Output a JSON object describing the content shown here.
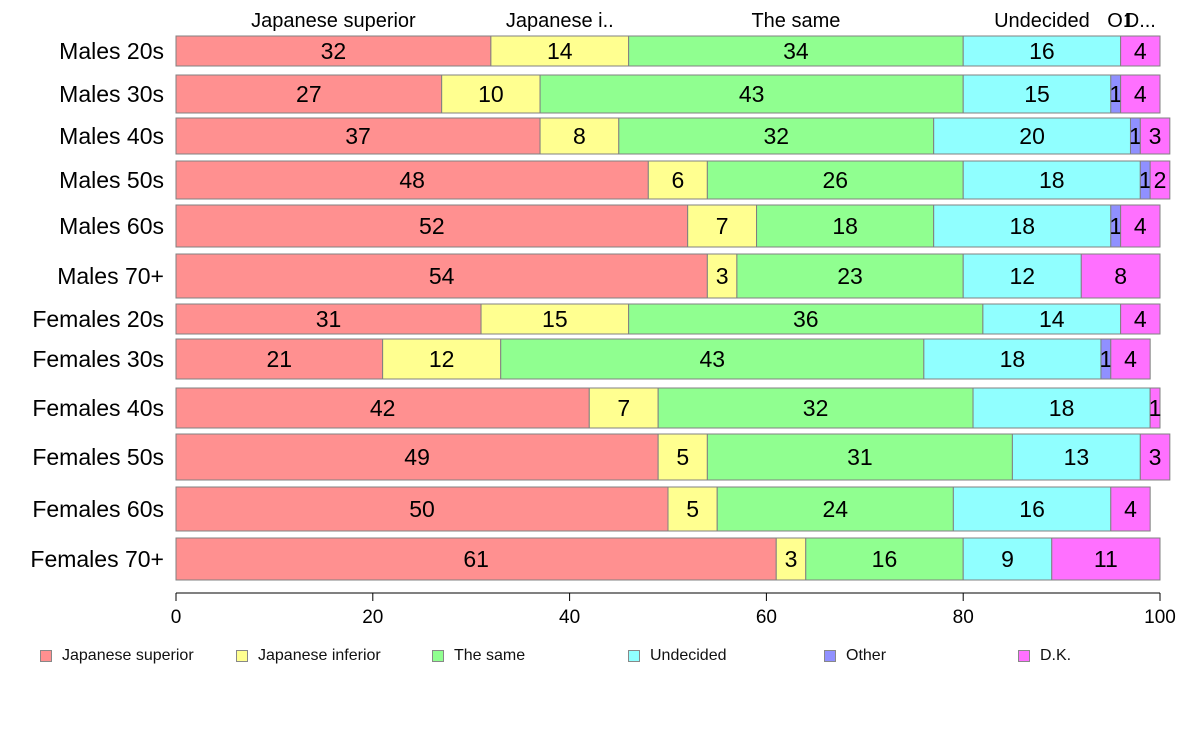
{
  "chart_data": {
    "type": "bar",
    "orientation": "horizontal",
    "stacked": true,
    "title": "",
    "xlabel": "",
    "ylabel": "",
    "xlim": [
      0,
      100
    ],
    "x_ticks": [
      "0",
      "20",
      "40",
      "60",
      "80",
      "100"
    ],
    "grid": false,
    "legend_position": "bottom",
    "categories": [
      "Males 20s",
      "Males 30s",
      "Males 40s",
      "Males 50s",
      "Males 60s",
      "Males 70+",
      "Females 20s",
      "Females 30s",
      "Females 40s",
      "Females 50s",
      "Females 60s",
      "Females 70+"
    ],
    "top_labels": [
      "Japanese superior",
      "Japanese i..",
      "The same",
      "Undecided",
      "O1",
      "D..."
    ],
    "series": [
      {
        "name": "Japanese superior",
        "color": "#ff9090",
        "values": [
          32,
          27,
          37,
          48,
          52,
          54,
          31,
          21,
          42,
          49,
          50,
          61
        ]
      },
      {
        "name": "Japanese inferior",
        "color": "#ffff90",
        "values": [
          14,
          10,
          8,
          6,
          7,
          3,
          15,
          12,
          7,
          5,
          5,
          3
        ]
      },
      {
        "name": "The same",
        "color": "#90ff90",
        "values": [
          34,
          43,
          32,
          26,
          18,
          23,
          36,
          43,
          32,
          31,
          24,
          16
        ]
      },
      {
        "name": "Undecided",
        "color": "#90ffff",
        "values": [
          16,
          15,
          20,
          18,
          18,
          12,
          14,
          18,
          18,
          13,
          16,
          9
        ]
      },
      {
        "name": "Other",
        "color": "#9090ff",
        "values": [
          0,
          1,
          1,
          1,
          1,
          0,
          0,
          1,
          0,
          0,
          0,
          0
        ]
      },
      {
        "name": "D.K.",
        "color": "#ff70ff",
        "values": [
          4,
          4,
          3,
          2,
          4,
          8,
          4,
          4,
          1,
          3,
          4,
          11
        ]
      }
    ]
  }
}
